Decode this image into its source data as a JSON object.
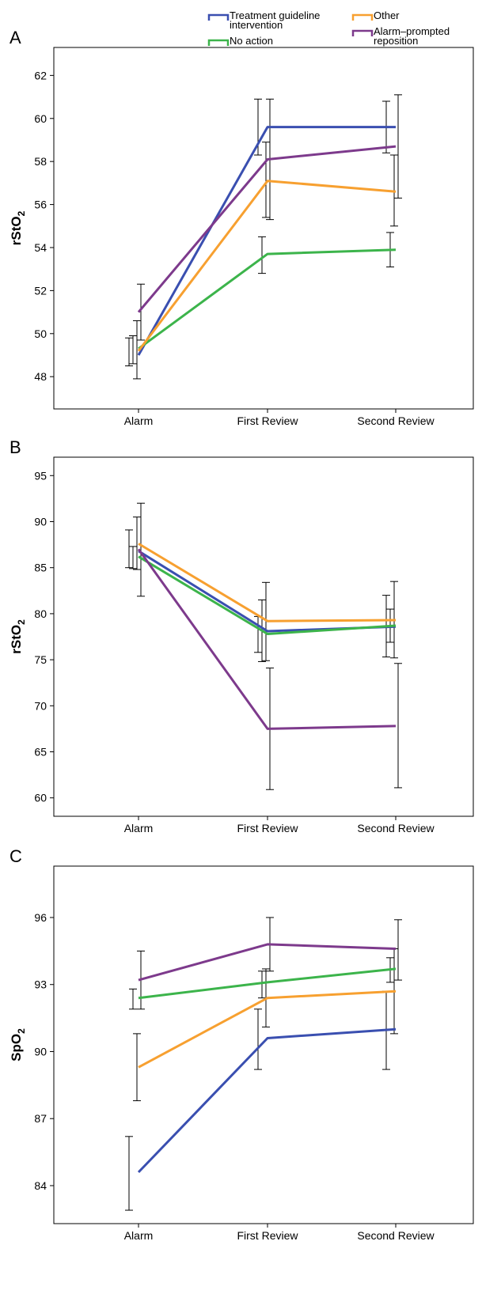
{
  "legend": [
    {
      "name": "Treatment guideline intervention",
      "lines": [
        "Treatment guideline",
        "intervention"
      ],
      "color": "#3a4fb0"
    },
    {
      "name": "No action",
      "lines": [
        "No action"
      ],
      "color": "#3cb44b"
    },
    {
      "name": "Other",
      "lines": [
        "Other"
      ],
      "color": "#f7a030"
    },
    {
      "name": "Alarm–prompted reposition",
      "lines": [
        "Alarm–prompted",
        "reposition"
      ],
      "color": "#7d3a8c"
    }
  ],
  "chart_data": [
    {
      "type": "line",
      "panel": "A",
      "ylabel": "rStO",
      "ylabel_sub": "2",
      "categories": [
        "Alarm",
        "First Review",
        "Second Review"
      ],
      "ylim": [
        46.5,
        63.3
      ],
      "yticks": [
        48,
        50,
        52,
        54,
        56,
        58,
        60,
        62
      ],
      "grid": false,
      "series": [
        {
          "name": "Treatment guideline intervention",
          "color": "#3a4fb0",
          "values": [
            49.0,
            59.6,
            59.6
          ],
          "err_lo": [
            48.5,
            58.3,
            58.4
          ],
          "err_hi": [
            49.8,
            60.9,
            60.8
          ]
        },
        {
          "name": "No action",
          "color": "#3cb44b",
          "values": [
            49.3,
            53.7,
            53.9
          ],
          "err_lo": [
            48.6,
            52.8,
            53.1
          ],
          "err_hi": [
            49.9,
            54.5,
            54.7
          ]
        },
        {
          "name": "Other",
          "color": "#f7a030",
          "values": [
            49.2,
            57.1,
            56.6
          ],
          "err_lo": [
            47.9,
            55.4,
            55.0
          ],
          "err_hi": [
            50.6,
            58.9,
            58.3
          ]
        },
        {
          "name": "Alarm–prompted reposition",
          "color": "#7d3a8c",
          "values": [
            51.0,
            58.1,
            58.7
          ],
          "err_lo": [
            49.7,
            55.3,
            56.3
          ],
          "err_hi": [
            52.3,
            60.9,
            61.1
          ]
        }
      ]
    },
    {
      "type": "line",
      "panel": "B",
      "ylabel": "rStO",
      "ylabel_sub": "2",
      "categories": [
        "Alarm",
        "First Review",
        "Second Review"
      ],
      "ylim": [
        58,
        97
      ],
      "yticks": [
        60,
        65,
        70,
        75,
        80,
        85,
        90,
        95
      ],
      "grid": false,
      "series": [
        {
          "name": "Treatment guideline intervention",
          "color": "#3a4fb0",
          "values": [
            86.8,
            78.1,
            78.6
          ],
          "err_lo": [
            85.0,
            75.8,
            75.3
          ],
          "err_hi": [
            89.1,
            79.7,
            82.0
          ]
        },
        {
          "name": "No action",
          "color": "#3cb44b",
          "values": [
            86.2,
            77.8,
            78.7
          ],
          "err_lo": [
            84.9,
            74.8,
            76.9
          ],
          "err_hi": [
            87.3,
            81.5,
            80.5
          ]
        },
        {
          "name": "Other",
          "color": "#f7a030",
          "values": [
            87.6,
            79.2,
            79.3
          ],
          "err_lo": [
            84.8,
            74.9,
            75.2
          ],
          "err_hi": [
            90.5,
            83.4,
            83.5
          ]
        },
        {
          "name": "Alarm–prompted reposition",
          "color": "#7d3a8c",
          "values": [
            87.0,
            67.5,
            67.8
          ],
          "err_lo": [
            81.9,
            60.9,
            61.1
          ],
          "err_hi": [
            92.0,
            74.1,
            74.6
          ]
        }
      ]
    },
    {
      "type": "line",
      "panel": "C",
      "ylabel": "SpO",
      "ylabel_sub": "2",
      "categories": [
        "Alarm",
        "First Review",
        "Second Review"
      ],
      "ylim": [
        82.3,
        98.3
      ],
      "yticks": [
        84,
        87,
        90,
        93,
        96
      ],
      "grid": false,
      "series": [
        {
          "name": "Treatment guideline intervention",
          "color": "#3a4fb0",
          "values": [
            84.6,
            90.6,
            91.0
          ],
          "err_lo": [
            82.9,
            89.2,
            89.2
          ],
          "err_hi": [
            86.2,
            91.9,
            92.7
          ]
        },
        {
          "name": "No action",
          "color": "#3cb44b",
          "values": [
            92.4,
            93.1,
            93.7
          ],
          "err_lo": [
            91.9,
            92.4,
            93.1
          ],
          "err_hi": [
            92.8,
            93.6,
            94.2
          ]
        },
        {
          "name": "Other",
          "color": "#f7a030",
          "values": [
            89.3,
            92.4,
            92.7
          ],
          "err_lo": [
            87.8,
            91.1,
            90.8
          ],
          "err_hi": [
            90.8,
            93.7,
            94.6
          ]
        },
        {
          "name": "Alarm–prompted reposition",
          "color": "#7d3a8c",
          "values": [
            93.2,
            94.8,
            94.6
          ],
          "err_lo": [
            91.9,
            93.6,
            93.2
          ],
          "err_hi": [
            94.5,
            96.0,
            95.9
          ]
        }
      ]
    }
  ]
}
